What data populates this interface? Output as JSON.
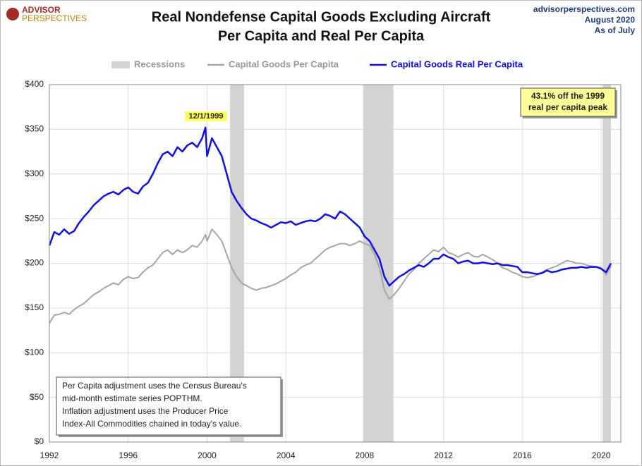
{
  "chart_data": {
    "type": "line",
    "title": [
      "Real Nondefense Capital Goods Excluding Aircraft",
      "Per Capita and Real Per Capita"
    ],
    "logo": [
      "ADVISOR",
      "PERSPECTIVES"
    ],
    "source": [
      "advisorperspectives.com",
      "August  2020",
      "As  of July"
    ],
    "peak_label": "12/1/1999",
    "callout": [
      "43.1%  off the 1999",
      "real per capita peak"
    ],
    "note": [
      "Per Capita adjustment uses the Census Bureau's",
      "mid-month estimate series POPTHM.",
      "Inflation adjustment uses the Producer Price",
      "Index-All Commodities chained in today's value."
    ],
    "recessions": {
      "name": "Recessions",
      "color": "#d3d3d3",
      "spans": [
        [
          2001.17,
          2001.88
        ],
        [
          2007.92,
          2009.46
        ],
        [
          2020.08,
          2020.5
        ]
      ]
    },
    "x": [
      1992,
      1992.25,
      1992.5,
      1992.75,
      1993,
      1993.25,
      1993.5,
      1993.75,
      1994,
      1994.25,
      1994.5,
      1994.75,
      1995,
      1995.25,
      1995.5,
      1995.75,
      1996,
      1996.25,
      1996.5,
      1996.75,
      1997,
      1997.25,
      1997.5,
      1997.75,
      1998,
      1998.25,
      1998.5,
      1998.75,
      1999,
      1999.25,
      1999.5,
      1999.75,
      1999.92,
      2000,
      2000.25,
      2000.5,
      2000.75,
      2001,
      2001.25,
      2001.5,
      2001.75,
      2002,
      2002.25,
      2002.5,
      2002.75,
      2003,
      2003.25,
      2003.5,
      2003.75,
      2004,
      2004.25,
      2004.5,
      2004.75,
      2005,
      2005.25,
      2005.5,
      2005.75,
      2006,
      2006.25,
      2006.5,
      2006.75,
      2007,
      2007.25,
      2007.5,
      2007.75,
      2008,
      2008.25,
      2008.5,
      2008.75,
      2009,
      2009.25,
      2009.5,
      2009.75,
      2010,
      2010.25,
      2010.5,
      2010.75,
      2011,
      2011.25,
      2011.5,
      2011.75,
      2012,
      2012.25,
      2012.5,
      2012.75,
      2013,
      2013.25,
      2013.5,
      2013.75,
      2014,
      2014.25,
      2014.5,
      2014.75,
      2015,
      2015.25,
      2015.5,
      2015.75,
      2016,
      2016.25,
      2016.5,
      2016.75,
      2017,
      2017.25,
      2017.5,
      2017.75,
      2018,
      2018.25,
      2018.5,
      2018.75,
      2019,
      2019.25,
      2019.5,
      2019.75,
      2020,
      2020.25,
      2020.5
    ],
    "series": [
      {
        "name": "Capital Goods Per Capita",
        "color": "#a6a6a6",
        "width": 2,
        "values": [
          133,
          142,
          143,
          145,
          143,
          148,
          152,
          155,
          160,
          165,
          168,
          172,
          175,
          178,
          176,
          182,
          185,
          183,
          184,
          190,
          195,
          198,
          205,
          212,
          215,
          210,
          215,
          212,
          215,
          220,
          218,
          225,
          232,
          225,
          238,
          232,
          225,
          210,
          195,
          185,
          178,
          175,
          172,
          170,
          172,
          173,
          175,
          177,
          180,
          183,
          187,
          190,
          195,
          198,
          200,
          205,
          210,
          215,
          218,
          220,
          222,
          222,
          220,
          222,
          225,
          222,
          220,
          210,
          195,
          170,
          160,
          165,
          172,
          180,
          188,
          193,
          200,
          205,
          210,
          215,
          213,
          218,
          212,
          210,
          207,
          210,
          212,
          208,
          207,
          210,
          207,
          204,
          200,
          195,
          193,
          190,
          188,
          185,
          184,
          185,
          187,
          190,
          193,
          195,
          197,
          200,
          203,
          202,
          200,
          200,
          198,
          197,
          196,
          195,
          187,
          197
        ]
      },
      {
        "name": "Capital Goods Real Per Capita",
        "color": "#1010e0",
        "width": 2.5,
        "values": [
          220,
          235,
          232,
          238,
          233,
          236,
          245,
          252,
          258,
          265,
          270,
          275,
          278,
          280,
          277,
          282,
          285,
          280,
          278,
          286,
          290,
          300,
          312,
          322,
          325,
          320,
          330,
          325,
          332,
          335,
          330,
          340,
          352,
          320,
          340,
          330,
          320,
          300,
          280,
          270,
          262,
          255,
          250,
          248,
          245,
          243,
          240,
          243,
          246,
          245,
          247,
          243,
          245,
          247,
          248,
          247,
          250,
          255,
          253,
          250,
          258,
          255,
          250,
          245,
          240,
          230,
          225,
          215,
          205,
          185,
          175,
          180,
          185,
          188,
          192,
          195,
          198,
          196,
          200,
          205,
          205,
          210,
          207,
          205,
          200,
          202,
          203,
          200,
          200,
          201,
          200,
          199,
          200,
          198,
          198,
          197,
          196,
          190,
          190,
          189,
          188,
          189,
          192,
          190,
          191,
          193,
          194,
          195,
          195,
          196,
          195,
          196,
          196,
          194,
          190,
          200
        ]
      }
    ],
    "xlim": [
      1992,
      2021
    ],
    "xticks": [
      1992,
      1996,
      2000,
      2004,
      2008,
      2012,
      2016,
      2020
    ],
    "ylim": [
      0,
      400
    ],
    "yticks": [
      {
        "value": 0,
        "label": "$0"
      },
      {
        "value": 50,
        "label": "$50"
      },
      {
        "value": 100,
        "label": "$100"
      },
      {
        "value": 150,
        "label": "$150"
      },
      {
        "value": 200,
        "label": "$200"
      },
      {
        "value": 250,
        "label": "$250"
      },
      {
        "value": 300,
        "label": "$300"
      },
      {
        "value": 350,
        "label": "$350"
      },
      {
        "value": 400,
        "label": "$400"
      }
    ],
    "grid": true
  }
}
